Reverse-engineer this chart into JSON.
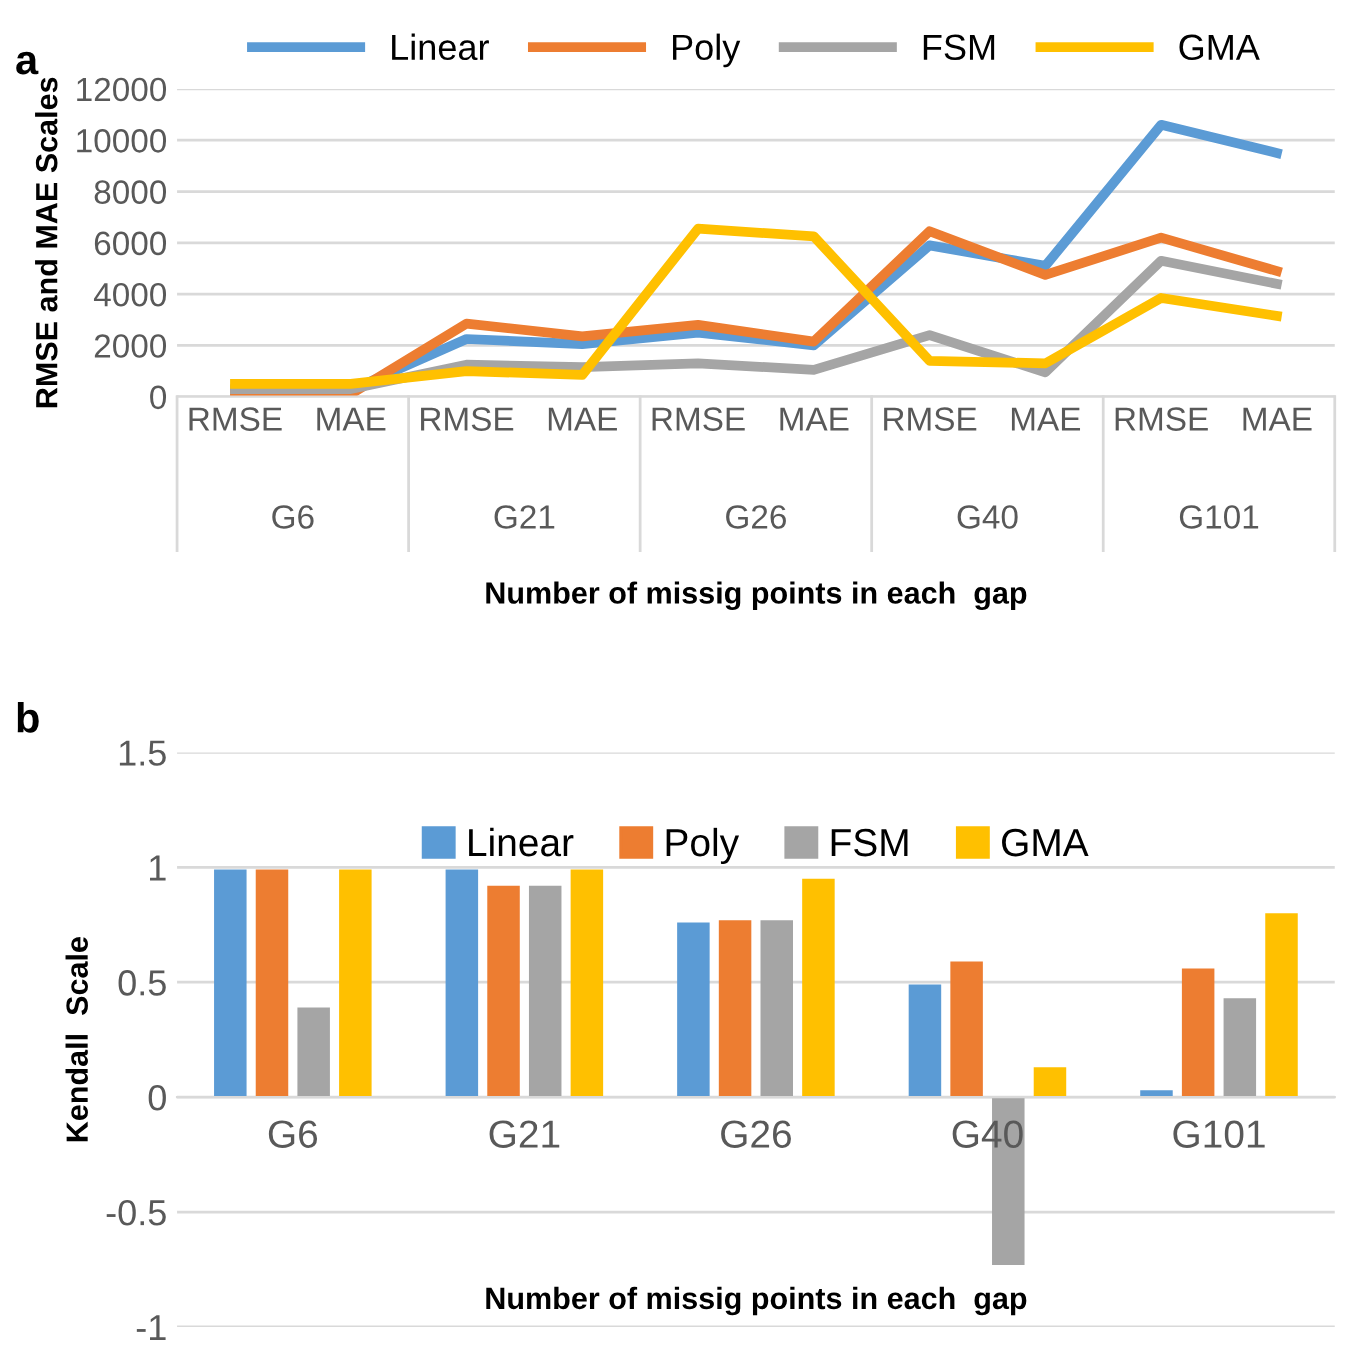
{
  "chart_data": [
    {
      "type": "line",
      "title": "a",
      "ylabel": "RMSE and MAE Scales",
      "xlabel": "Number of missig points in each  gap",
      "categories": [
        "RMSE",
        "MAE",
        "RMSE",
        "MAE",
        "RMSE",
        "MAE",
        "RMSE",
        "MAE",
        "RMSE",
        "MAE"
      ],
      "annotations": [
        "G6",
        "G21",
        "G26",
        "G40",
        "G101"
      ],
      "series": [
        {
          "name": "Linear",
          "color": "#5b9bd5",
          "values": [
            250,
            250,
            2250,
            2050,
            2500,
            2000,
            5900,
            5100,
            10600,
            9500
          ]
        },
        {
          "name": "Poly",
          "color": "#ed7d31",
          "values": [
            100,
            100,
            2850,
            2350,
            2800,
            2150,
            6450,
            4750,
            6200,
            4900
          ]
        },
        {
          "name": "FSM",
          "color": "#a5a5a5",
          "values": [
            300,
            300,
            1250,
            1150,
            1300,
            1050,
            2400,
            950,
            5300,
            4400
          ]
        },
        {
          "name": "GMA",
          "color": "#ffc000",
          "values": [
            500,
            500,
            1000,
            850,
            6550,
            6250,
            1400,
            1300,
            3850,
            3150
          ]
        }
      ],
      "ylim": [
        0,
        12000
      ],
      "yticks": [
        0,
        2000,
        4000,
        6000,
        8000,
        10000,
        12000
      ],
      "grid": "y",
      "legend": "top",
      "line_style": "solid"
    },
    {
      "type": "bar",
      "title": "b",
      "ylabel": "Kendall  Scale",
      "xlabel": "Number of missig points in each  gap",
      "categories": [
        "G6",
        "G21",
        "G26",
        "G40",
        "G101"
      ],
      "series": [
        {
          "name": "Linear",
          "color": "#5b9bd5",
          "values": [
            0.99,
            0.99,
            0.76,
            0.49,
            0.03
          ]
        },
        {
          "name": "Poly",
          "color": "#ed7d31",
          "values": [
            0.99,
            0.92,
            0.77,
            0.59,
            0.56
          ]
        },
        {
          "name": "FSM",
          "color": "#a5a5a5",
          "values": [
            0.39,
            0.92,
            0.77,
            -0.73,
            0.43
          ]
        },
        {
          "name": "GMA",
          "color": "#ffc000",
          "values": [
            0.99,
            0.99,
            0.95,
            0.13,
            0.8
          ]
        }
      ],
      "ylim": [
        -1,
        1.5
      ],
      "yticks": [
        -1,
        -0.5,
        0,
        0.5,
        1,
        1.5
      ],
      "grid": "y",
      "legend": "top"
    }
  ]
}
